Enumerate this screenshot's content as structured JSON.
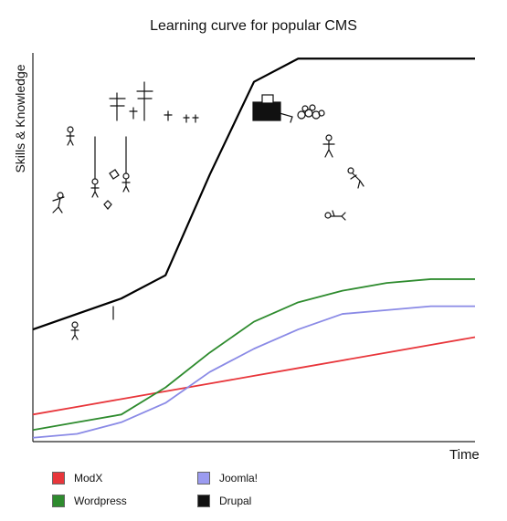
{
  "chart_data": {
    "type": "line",
    "title": "Learning curve for popular CMS",
    "xlabel": "Time",
    "ylabel": "Skills & Knowledge",
    "x": [
      0,
      1,
      2,
      3,
      4,
      5,
      6,
      7,
      8,
      9,
      10
    ],
    "xlim": [
      0,
      10
    ],
    "ylim": [
      0,
      100
    ],
    "grid": false,
    "legend_position": "bottom",
    "series": [
      {
        "name": "ModX",
        "color": "#e8363b",
        "values": [
          7,
          9,
          11,
          13,
          15,
          17,
          19,
          21,
          23,
          25,
          27
        ]
      },
      {
        "name": "Wordpress",
        "color": "#2e8b2e",
        "values": [
          3,
          5,
          7,
          14,
          23,
          31,
          36,
          39,
          41,
          42,
          42
        ]
      },
      {
        "name": "Joomla!",
        "color": "#8a8ae6",
        "values": [
          1,
          2,
          5,
          10,
          18,
          24,
          29,
          33,
          34,
          35,
          35
        ]
      },
      {
        "name": "Drupal",
        "color": "#000000",
        "values": [
          29,
          33,
          37,
          43,
          69,
          93,
          99,
          99,
          99,
          99,
          99
        ]
      }
    ],
    "legend": [
      {
        "name": "ModX",
        "color": "#e8363b"
      },
      {
        "name": "Joomla!",
        "color": "#9b9bf0"
      },
      {
        "name": "Wordpress",
        "color": "#2e8b2e"
      },
      {
        "name": "Drupal",
        "color": "#111111"
      }
    ]
  }
}
